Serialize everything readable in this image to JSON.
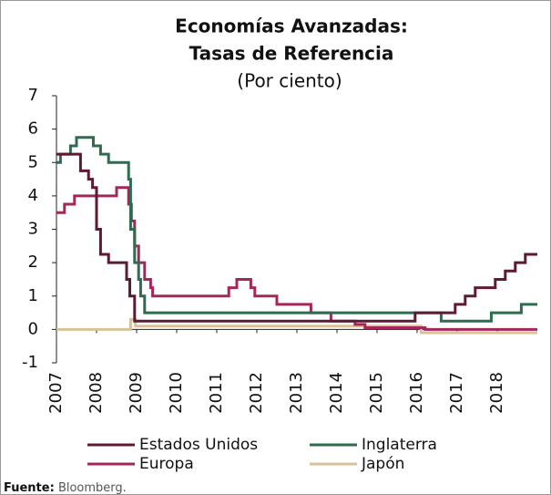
{
  "chart_data": {
    "type": "step-line",
    "title": [
      "Economías Avanzadas:",
      "Tasas de Referencia"
    ],
    "subtitle": "(Por ciento)",
    "xlim": [
      2007,
      2019
    ],
    "xticks": [
      2007,
      2008,
      2009,
      2010,
      2011,
      2012,
      2013,
      2014,
      2015,
      2016,
      2017,
      2018
    ],
    "ylim": [
      -1,
      7
    ],
    "yticks": [
      -1,
      0,
      1,
      2,
      3,
      4,
      5,
      6,
      7
    ],
    "series": [
      {
        "name": "Estados Unidos",
        "color": "#5c1a33",
        "x": [
          2007.0,
          2007.6,
          2007.8,
          2007.9,
          2008.0,
          2008.1,
          2008.3,
          2008.75,
          2008.83,
          2008.95,
          2015.95,
          2016.95,
          2017.2,
          2017.45,
          2017.95,
          2018.2,
          2018.45,
          2018.7
        ],
        "values": [
          5.25,
          4.75,
          4.5,
          4.25,
          3.0,
          2.25,
          2.0,
          1.5,
          1.0,
          0.25,
          0.5,
          0.75,
          1.0,
          1.25,
          1.5,
          1.75,
          2.0,
          2.25
        ]
      },
      {
        "name": "Inglaterra",
        "color": "#2e6b4f",
        "x": [
          2007.0,
          2007.1,
          2007.35,
          2007.5,
          2007.92,
          2008.1,
          2008.3,
          2008.8,
          2008.85,
          2008.95,
          2009.05,
          2009.1,
          2009.2,
          2016.6,
          2017.85,
          2018.6
        ],
        "values": [
          5.0,
          5.25,
          5.5,
          5.75,
          5.5,
          5.25,
          5.0,
          4.5,
          3.0,
          2.0,
          1.5,
          1.0,
          0.5,
          0.25,
          0.5,
          0.75
        ]
      },
      {
        "name": "Europa",
        "color": "#a3285a",
        "x": [
          2007.0,
          2007.2,
          2007.45,
          2008.5,
          2008.8,
          2008.87,
          2008.95,
          2009.05,
          2009.2,
          2009.35,
          2009.4,
          2011.3,
          2011.5,
          2011.85,
          2011.95,
          2012.5,
          2013.35,
          2013.85,
          2014.45,
          2014.7,
          2016.2
        ],
        "values": [
          3.5,
          3.75,
          4.0,
          4.25,
          3.75,
          3.25,
          2.5,
          2.0,
          1.5,
          1.25,
          1.0,
          1.25,
          1.5,
          1.25,
          1.0,
          0.75,
          0.5,
          0.25,
          0.15,
          0.05,
          0.0
        ]
      },
      {
        "name": "Japón",
        "color": "#d9c29a",
        "x": [
          2007.0,
          2008.85,
          2008.97,
          2016.1
        ],
        "values": [
          0.0,
          0.3,
          0.1,
          -0.1
        ]
      }
    ],
    "source_label": "Fuente:",
    "source": "Bloomberg."
  }
}
